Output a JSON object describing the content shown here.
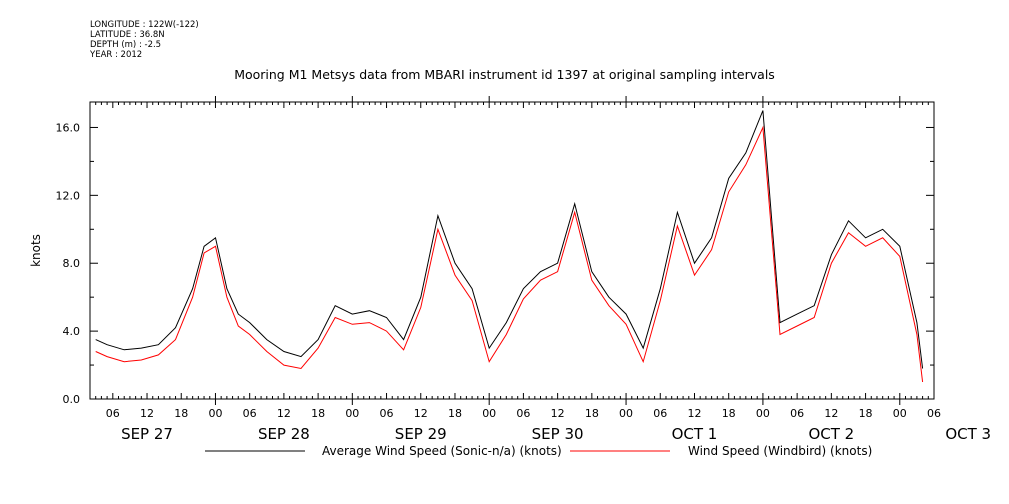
{
  "metadata": [
    "LONGITUDE : 122W(-122)",
    "LATITUDE : 36.8N",
    "DEPTH (m) : -2.5",
    "YEAR : 2012"
  ],
  "colors": {
    "series1": "#000000",
    "series2": "#ff0000"
  },
  "chart_data": {
    "type": "line",
    "title": "Mooring M1 Metsys data from MBARI instrument id 1397 at original sampling intervals",
    "ylabel": "knots",
    "ylim": [
      0,
      17.5
    ],
    "yticks": [
      0,
      4,
      8,
      12,
      16
    ],
    "ytick_labels": [
      "0.0",
      "4.0",
      "8.0",
      "12.0",
      "16.0"
    ],
    "xlim_hours": [
      2,
      150
    ],
    "hour_ticks": [
      "06",
      "12",
      "18",
      "00",
      "06",
      "12",
      "18",
      "00",
      "06",
      "12",
      "18",
      "00",
      "06",
      "12",
      "18",
      "00",
      "06",
      "12",
      "18",
      "00",
      "06",
      "12",
      "18",
      "00",
      "06"
    ],
    "day_labels": [
      "SEP 27",
      "SEP 28",
      "SEP 29",
      "SEP 30",
      "OCT  1",
      "OCT  2",
      "OCT  3"
    ],
    "x_hours": [
      3,
      5,
      8,
      11,
      14,
      17,
      20,
      22,
      24,
      26,
      28,
      30,
      33,
      36,
      39,
      42,
      45,
      48,
      51,
      54,
      57,
      60,
      63,
      66,
      69,
      72,
      75,
      78,
      81,
      84,
      87,
      90,
      93,
      96,
      99,
      102,
      105,
      108,
      111,
      114,
      117,
      120,
      123,
      126,
      129,
      132,
      135,
      138,
      141,
      144,
      147,
      148
    ],
    "series": [
      {
        "name": "Average Wind Speed (Sonic-n/a) (knots)",
        "values": [
          3.5,
          3.2,
          2.9,
          3.0,
          3.2,
          4.2,
          6.5,
          9.0,
          9.5,
          6.5,
          5.0,
          4.5,
          3.5,
          2.8,
          2.5,
          3.5,
          5.5,
          5.0,
          5.2,
          4.8,
          3.5,
          6.0,
          10.8,
          8.0,
          6.5,
          3.0,
          4.5,
          6.5,
          7.5,
          8.0,
          11.5,
          7.5,
          6.0,
          5.0,
          3.0,
          6.5,
          11.0,
          8.0,
          9.5,
          13.0,
          14.5,
          17.0,
          4.5,
          5.0,
          5.5,
          8.5,
          10.5,
          9.5,
          10.0,
          9.0,
          4.5,
          1.8
        ]
      },
      {
        "name": "Wind Speed (Windbird) (knots)",
        "values": [
          2.8,
          2.5,
          2.2,
          2.3,
          2.6,
          3.5,
          6.0,
          8.6,
          9.0,
          6.0,
          4.3,
          3.8,
          2.8,
          2.0,
          1.8,
          3.0,
          4.8,
          4.4,
          4.5,
          4.0,
          2.9,
          5.4,
          10.0,
          7.3,
          5.8,
          2.2,
          3.8,
          5.9,
          7.0,
          7.5,
          11.0,
          7.0,
          5.5,
          4.4,
          2.2,
          5.8,
          10.2,
          7.3,
          8.8,
          12.2,
          13.8,
          16.0,
          3.8,
          4.3,
          4.8,
          8.0,
          9.8,
          9.0,
          9.5,
          8.4,
          3.8,
          1.0
        ]
      }
    ]
  }
}
